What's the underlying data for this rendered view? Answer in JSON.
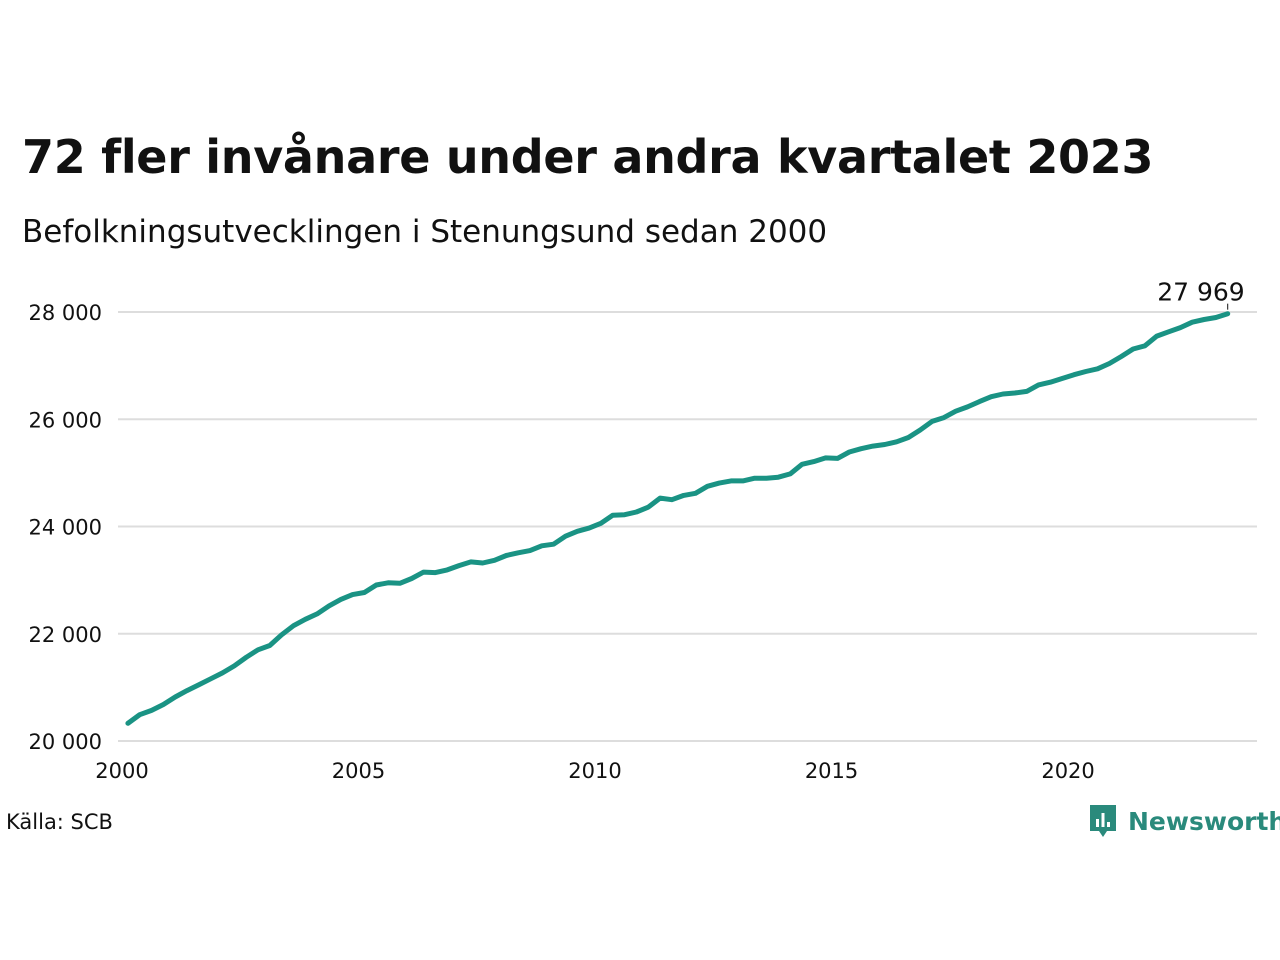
{
  "header": {
    "title": "72 fler invånare under andra kvartalet 2023",
    "subtitle": "Befolkningsutvecklingen i Stenungsund sedan 2000"
  },
  "footer": {
    "source": "Källa: SCB",
    "brand": "Newsworthy",
    "brand_icon": "bar-chart-icon"
  },
  "colors": {
    "line": "#1a9384",
    "grid": "#dddddd",
    "text": "#111111",
    "brand": "#2a8a7c"
  },
  "chart_data": {
    "type": "line",
    "ylim": [
      20000,
      28000
    ],
    "xlim": [
      2000,
      2024.1
    ],
    "grid": "horizontal",
    "x_ticks": [
      2000,
      2005,
      2010,
      2015,
      2020
    ],
    "x_tick_labels": [
      "2000",
      "2005",
      "2010",
      "2015",
      "2020"
    ],
    "y_ticks": [
      20000,
      22000,
      24000,
      26000,
      28000
    ],
    "y_tick_labels": [
      "20 000",
      "22 000",
      "24 000",
      "26 000",
      "28 000"
    ],
    "end_label": "27 969",
    "series": [
      {
        "x": [
          2000.125,
          2000.375,
          2000.625,
          2000.875,
          2001.125,
          2001.375,
          2001.625,
          2001.875,
          2002.125,
          2002.375,
          2002.625,
          2002.875,
          2003.125,
          2003.375,
          2003.625,
          2003.875,
          2004.125,
          2004.375,
          2004.625,
          2004.875,
          2005.125,
          2005.375,
          2005.625,
          2005.875,
          2006.125,
          2006.375,
          2006.625,
          2006.875,
          2007.125,
          2007.375,
          2007.625,
          2007.875,
          2008.125,
          2008.375,
          2008.625,
          2008.875,
          2009.125,
          2009.375,
          2009.625,
          2009.875,
          2010.125,
          2010.375,
          2010.625,
          2010.875,
          2011.125,
          2011.375,
          2011.625,
          2011.875,
          2012.125,
          2012.375,
          2012.625,
          2012.875,
          2013.125,
          2013.375,
          2013.625,
          2013.875,
          2014.125,
          2014.375,
          2014.625,
          2014.875,
          2015.125,
          2015.375,
          2015.625,
          2015.875,
          2016.125,
          2016.375,
          2016.625,
          2016.875,
          2017.125,
          2017.375,
          2017.625,
          2017.875,
          2018.125,
          2018.375,
          2018.625,
          2018.875,
          2019.125,
          2019.375,
          2019.625,
          2019.875,
          2020.125,
          2020.375,
          2020.625,
          2020.875,
          2021.125,
          2021.375,
          2021.625,
          2021.875,
          2022.125,
          2022.375,
          2022.625,
          2022.875,
          2023.125,
          2023.375
        ],
        "values": [
          20330,
          20490,
          20570,
          20680,
          20820,
          20940,
          21050,
          21160,
          21270,
          21400,
          21560,
          21700,
          21780,
          21980,
          22150,
          22270,
          22370,
          22520,
          22640,
          22730,
          22770,
          22910,
          22950,
          22940,
          23030,
          23150,
          23140,
          23190,
          23270,
          23340,
          23320,
          23370,
          23460,
          23510,
          23550,
          23640,
          23670,
          23820,
          23910,
          23970,
          24060,
          24210,
          24220,
          24270,
          24360,
          24530,
          24500,
          24580,
          24620,
          24750,
          24810,
          24850,
          24850,
          24900,
          24900,
          24920,
          24980,
          25160,
          25210,
          25280,
          25270,
          25390,
          25450,
          25500,
          25530,
          25580,
          25660,
          25800,
          25960,
          26030,
          26150,
          26230,
          26330,
          26420,
          26470,
          26490,
          26520,
          26640,
          26690,
          26760,
          26830,
          26890,
          26940,
          27040,
          27170,
          27310,
          27370,
          27550,
          27630,
          27710,
          27810,
          27860,
          27897,
          27969
        ]
      }
    ]
  }
}
